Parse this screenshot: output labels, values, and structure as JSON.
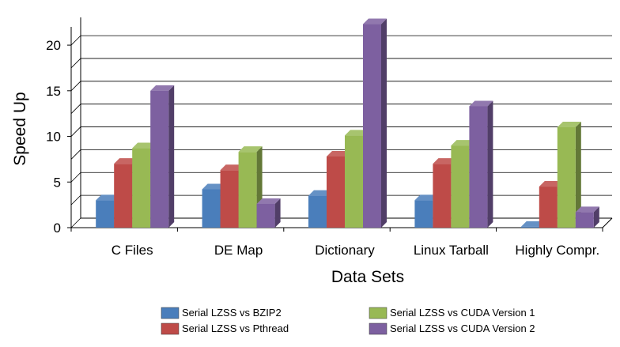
{
  "chart_data": {
    "type": "bar",
    "title": "",
    "xlabel": "Data Sets",
    "ylabel": "Speed Up",
    "ylim": [
      0,
      22
    ],
    "yticks": [
      0,
      5,
      10,
      15,
      20
    ],
    "gridlines": true,
    "three_d": true,
    "legend_position": "bottom",
    "categories": [
      "C Files",
      "DE Map",
      "Dictionary",
      "Linux Tarball",
      "Highly Compr."
    ],
    "series": [
      {
        "name": "Serial LZSS vs BZIP2",
        "color": "#4a7ebb",
        "values": [
          3.0,
          4.2,
          3.5,
          3.0,
          0.1
        ]
      },
      {
        "name": "Serial LZSS vs Pthread",
        "color": "#be4b48",
        "values": [
          7.0,
          6.3,
          7.8,
          7.0,
          4.5
        ]
      },
      {
        "name": "Serial LZSS vs CUDA Version 1",
        "color": "#98b954",
        "values": [
          8.7,
          8.3,
          10.1,
          9.0,
          11.0
        ]
      },
      {
        "name": "Serial LZSS vs CUDA Version 2",
        "color": "#7d60a0",
        "values": [
          15.0,
          2.6,
          22.3,
          13.3,
          1.7
        ]
      }
    ]
  }
}
